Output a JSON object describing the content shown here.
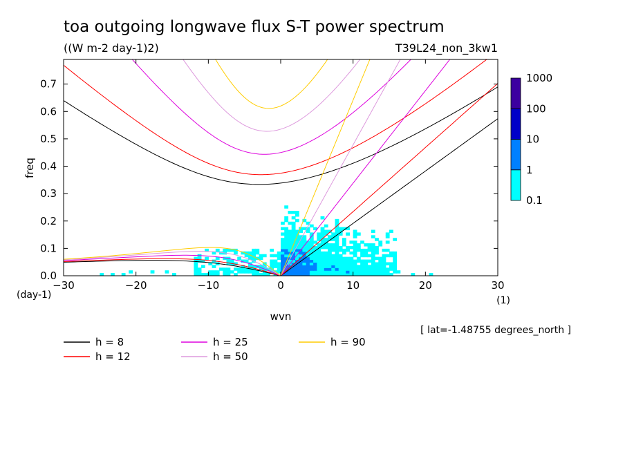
{
  "chart_data": {
    "type": "heatmap",
    "title": "toa outgoing longwave flux S-T power spectrum",
    "subtitle": "((W m-2 day-1)2)",
    "run_label": "T39L24_non_3kw1",
    "xlabel": "wvn",
    "ylabel": "freq",
    "x_units": "(1)",
    "y_units": "(day-1)",
    "xlim": [
      -30,
      30
    ],
    "ylim": [
      0,
      0.79
    ],
    "xticks": [
      -30,
      -20,
      -10,
      0,
      10,
      20,
      30
    ],
    "yticks": [
      0.0,
      0.1,
      0.2,
      0.3,
      0.4,
      0.5,
      0.6,
      0.7
    ],
    "ytick_labels": [
      "0.0",
      "0.1",
      "0.2",
      "0.3",
      "0.4",
      "0.5",
      "0.6",
      "0.7"
    ],
    "lat_note": "[ lat=-1.48755 degrees_north ]",
    "colorbar": {
      "levels": [
        "0.1",
        "1",
        "10",
        "100",
        "1000"
      ],
      "colors": [
        "#00ffff",
        "#0080ff",
        "#0000c8",
        "#3c00a0"
      ]
    },
    "dispersion_curves": [
      {
        "label": "h =  8",
        "h": 8,
        "color": "#000000"
      },
      {
        "label": "h = 12",
        "h": 12,
        "color": "#ff0000"
      },
      {
        "label": "h = 25",
        "h": 25,
        "color": "#dd00dd"
      },
      {
        "label": "h = 50",
        "h": 50,
        "color": "#dd99dd"
      },
      {
        "label": "h = 90",
        "h": 90,
        "color": "#ffcc00"
      }
    ]
  }
}
